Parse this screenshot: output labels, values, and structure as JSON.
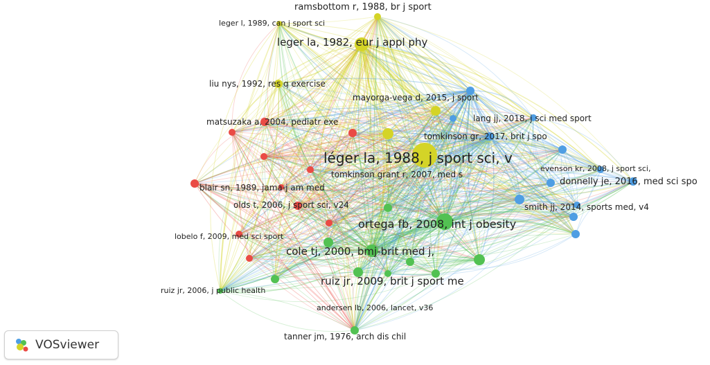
{
  "app": {
    "name": "VOSviewer"
  },
  "colors": {
    "red": "#ea4b45",
    "green": "#52c152",
    "blue": "#4f9ee3",
    "yellow": "#d4d427"
  },
  "network": {
    "clusters": [
      "red",
      "green",
      "blue",
      "yellow"
    ],
    "labels": [
      "ramsbottom r, 1988, br j sport",
      "leger l, 1989, can j sport sci",
      "leger la, 1982, eur j appl phy",
      "liu nys, 1992, res q exercise",
      "mayorga-vega d, 2015, j sport",
      "matsuzaka a, 2004, pediatr exe",
      "lang jj, 2018, j sci med sport",
      "tomkinson gr, 2017, brit j spo",
      "léger la, 1988, j sport sci, v",
      "tomkinson grant r, 2007, med s",
      "evenson kr, 2008, j sport sci,",
      "blair sn, 1989, jama-j am med",
      "donnelly je, 2016, med sci spo",
      "olds t, 2006, j sport sci, v24",
      "smith jj, 2014, sports med, v4",
      "ortega fb, 2008, int j obesity",
      "lobelo f, 2009, med sci sport",
      "cole tj, 2000, bmj-brit med j,",
      "ruiz jr, 2009, brit j sport me",
      "ruiz jr, 2006, j public health",
      "andersen lb, 2006, lancet, v36",
      "tanner jm, 1976, arch dis chil"
    ]
  }
}
